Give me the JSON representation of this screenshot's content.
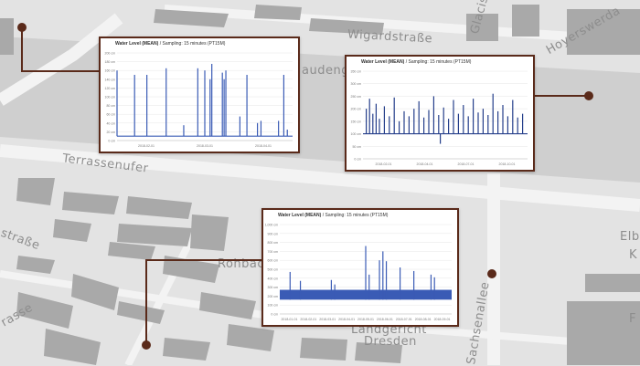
{
  "map": {
    "streets": [
      "Wigardstraße",
      "Glacis",
      "Hoyerswerda",
      "audengar",
      "Terrassenufer",
      "straße",
      "Rohbac",
      "Elbe",
      "K",
      "rasse",
      "Sachsenallee",
      "Landgericht",
      "Dresden",
      "F"
    ],
    "colors": {
      "background": "#e3e3e3",
      "river": "#cfcfcf",
      "building": "#a9a9a9",
      "road": "#f3f3f3",
      "connector": "#5a2a1a"
    }
  },
  "panels": [
    {
      "title": "Water Level (MEAN)",
      "subtitle": " / Sampling: 15 minutes (PT15M)",
      "chart_data": {
        "type": "line",
        "x_ticks": [
          "2018-02-01",
          "2018-03-01",
          "2018-04-01"
        ],
        "y_ticks": [
          "200 cm",
          "180 cm",
          "160 cm",
          "140 cm",
          "120 cm",
          "100 cm",
          "80 cm",
          "60 cm",
          "40 cm",
          "20 cm",
          "0 cm"
        ],
        "ylim": [
          0,
          200
        ],
        "series": [
          {
            "color": "#3a5bb5",
            "baseline": 10,
            "spikes": [
              {
                "x": 0.0,
                "y": 160
              },
              {
                "x": 0.1,
                "y": 150
              },
              {
                "x": 0.17,
                "y": 150
              },
              {
                "x": 0.28,
                "y": 165
              },
              {
                "x": 0.38,
                "y": 35
              },
              {
                "x": 0.46,
                "y": 165
              },
              {
                "x": 0.5,
                "y": 160
              },
              {
                "x": 0.53,
                "y": 140
              },
              {
                "x": 0.54,
                "y": 175
              },
              {
                "x": 0.6,
                "y": 155
              },
              {
                "x": 0.61,
                "y": 140
              },
              {
                "x": 0.62,
                "y": 160
              },
              {
                "x": 0.7,
                "y": 55
              },
              {
                "x": 0.74,
                "y": 150
              },
              {
                "x": 0.8,
                "y": 40
              },
              {
                "x": 0.82,
                "y": 45
              },
              {
                "x": 0.92,
                "y": 45
              },
              {
                "x": 0.95,
                "y": 150
              },
              {
                "x": 0.97,
                "y": 25
              }
            ]
          }
        ]
      }
    },
    {
      "title": "Water Level (MEAN)",
      "subtitle": " / Sampling: 15 minutes (PT15M)",
      "chart_data": {
        "type": "line",
        "x_ticks": [
          "2018-02-01",
          "2018-04-01",
          "2018-07-01",
          "2018-10-01"
        ],
        "y_ticks": [
          "350 cm",
          "300 cm",
          "250 cm",
          "200 cm",
          "150 cm",
          "100 cm",
          "50 cm",
          "0 cm"
        ],
        "ylim": [
          0,
          350
        ],
        "series": [
          {
            "color": "#243e8a",
            "baseline": 100,
            "spikes": [
              {
                "x": 0.02,
                "y": 200
              },
              {
                "x": 0.04,
                "y": 240
              },
              {
                "x": 0.06,
                "y": 180
              },
              {
                "x": 0.08,
                "y": 220
              },
              {
                "x": 0.1,
                "y": 160
              },
              {
                "x": 0.13,
                "y": 210
              },
              {
                "x": 0.16,
                "y": 170
              },
              {
                "x": 0.19,
                "y": 245
              },
              {
                "x": 0.22,
                "y": 150
              },
              {
                "x": 0.25,
                "y": 190
              },
              {
                "x": 0.28,
                "y": 170
              },
              {
                "x": 0.31,
                "y": 200
              },
              {
                "x": 0.34,
                "y": 230
              },
              {
                "x": 0.37,
                "y": 165
              },
              {
                "x": 0.4,
                "y": 195
              },
              {
                "x": 0.43,
                "y": 250
              },
              {
                "x": 0.46,
                "y": 175
              },
              {
                "x": 0.49,
                "y": 205
              },
              {
                "x": 0.52,
                "y": 160
              },
              {
                "x": 0.55,
                "y": 235
              },
              {
                "x": 0.58,
                "y": 180
              },
              {
                "x": 0.61,
                "y": 215
              },
              {
                "x": 0.64,
                "y": 170
              },
              {
                "x": 0.67,
                "y": 240
              },
              {
                "x": 0.7,
                "y": 185
              },
              {
                "x": 0.73,
                "y": 200
              },
              {
                "x": 0.76,
                "y": 175
              },
              {
                "x": 0.79,
                "y": 260
              },
              {
                "x": 0.82,
                "y": 190
              },
              {
                "x": 0.85,
                "y": 215
              },
              {
                "x": 0.88,
                "y": 170
              },
              {
                "x": 0.91,
                "y": 235
              },
              {
                "x": 0.94,
                "y": 165
              },
              {
                "x": 0.97,
                "y": 180
              }
            ],
            "dips": [
              {
                "x": 0.47,
                "y": 60
              }
            ]
          }
        ]
      }
    },
    {
      "title": "Water Level (MEAN)",
      "subtitle": " / Sampling: 15 minutes (PT15M)",
      "chart_data": {
        "type": "line",
        "x_ticks": [
          "2018-01-01",
          "2018-02-01",
          "2018-03-01",
          "2018-04-01",
          "2018-05-01",
          "2018-06-01",
          "2018-07-01",
          "2018-08-01",
          "2018-09-01"
        ],
        "y_ticks": [
          "1,000 cm",
          "900 cm",
          "800 cm",
          "700 cm",
          "600 cm",
          "500 cm",
          "400 cm",
          "300 cm",
          "200 cm",
          "100 cm",
          "0 cm"
        ],
        "ylim": [
          0,
          1000
        ],
        "series": [
          {
            "color": "#3a5bb5",
            "band": [
              160,
              270
            ],
            "spikes": [
              {
                "x": 0.06,
                "y": 470
              },
              {
                "x": 0.12,
                "y": 370
              },
              {
                "x": 0.3,
                "y": 380
              },
              {
                "x": 0.32,
                "y": 330
              },
              {
                "x": 0.5,
                "y": 760
              },
              {
                "x": 0.52,
                "y": 440
              },
              {
                "x": 0.58,
                "y": 600
              },
              {
                "x": 0.6,
                "y": 700
              },
              {
                "x": 0.62,
                "y": 590
              },
              {
                "x": 0.7,
                "y": 520
              },
              {
                "x": 0.78,
                "y": 480
              },
              {
                "x": 0.88,
                "y": 440
              },
              {
                "x": 0.9,
                "y": 410
              }
            ]
          }
        ]
      }
    }
  ]
}
